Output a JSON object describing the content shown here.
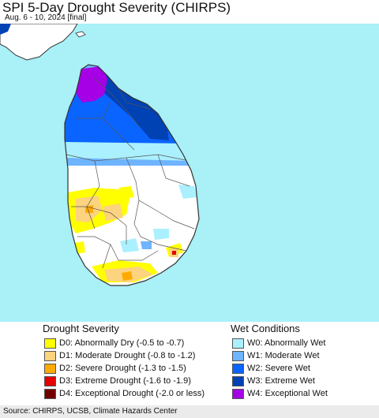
{
  "title": "SPI 5-Day Drought Severity (CHIRPS)",
  "subtitle": "Aug. 6 - 10, 2024 [final]",
  "map": {
    "ocean_color": "#a9f0f7",
    "land_color": "#ffffff",
    "border_color": "#444444"
  },
  "legend": {
    "drought": {
      "heading": "Drought Severity",
      "items": [
        {
          "code": "D0",
          "label": "D0: Abnormally Dry (-0.5 to -0.7)",
          "color": "#ffff00"
        },
        {
          "code": "D1",
          "label": "D1: Moderate Drought (-0.8 to -1.2)",
          "color": "#fcd37f"
        },
        {
          "code": "D2",
          "label": "D2: Severe Drought (-1.3 to -1.5)",
          "color": "#ffaa00"
        },
        {
          "code": "D3",
          "label": "D3: Extreme Drought (-1.6 to -1.9)",
          "color": "#e60000"
        },
        {
          "code": "D4",
          "label": "D4: Exceptional Drought (-2.0 or less)",
          "color": "#730000"
        }
      ]
    },
    "wet": {
      "heading": "Wet Conditions",
      "items": [
        {
          "code": "W0",
          "label": "W0: Abnormally Wet",
          "color": "#aaf0ff"
        },
        {
          "code": "W1",
          "label": "W1: Moderate Wet",
          "color": "#6eb4ff"
        },
        {
          "code": "W2",
          "label": "W2: Severe Wet",
          "color": "#0a64ff"
        },
        {
          "code": "W3",
          "label": "W3: Extreme Wet",
          "color": "#0041b4"
        },
        {
          "code": "W4",
          "label": "W4: Exceptional Wet",
          "color": "#a500e6"
        }
      ]
    }
  },
  "footer": {
    "source": "Source: CHIRPS, UCSB, Climate Hazards Center"
  }
}
